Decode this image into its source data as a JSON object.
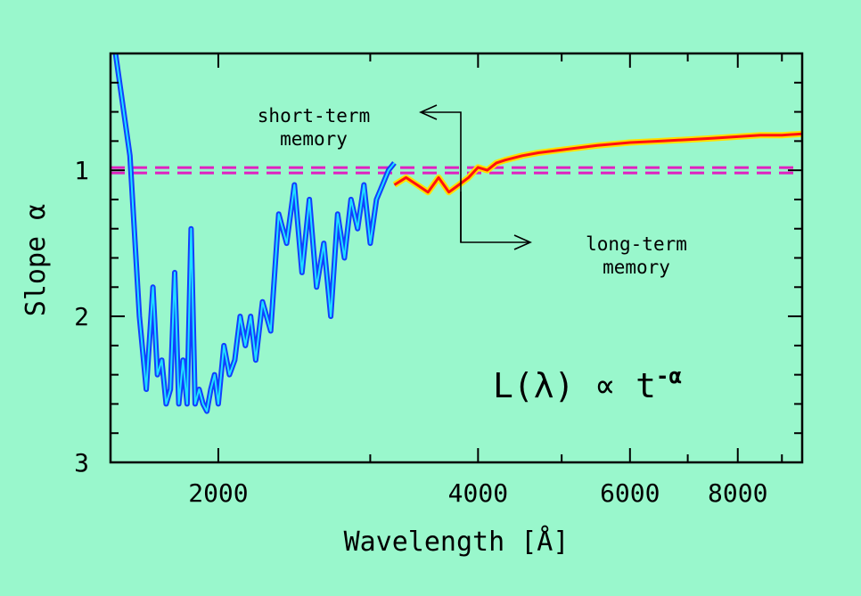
{
  "chart_data": {
    "type": "line",
    "title": "",
    "xlabel": "Wavelength [Å]",
    "ylabel": "Slope α",
    "xscale": "log",
    "xlim": [
      1500,
      9500
    ],
    "ylim": [
      3,
      0.2
    ],
    "y_inverted": true,
    "grid": false,
    "x_ticks": [
      2000,
      4000,
      6000,
      8000
    ],
    "x_tick_labels": [
      "2000",
      "4000",
      "6000",
      "8000"
    ],
    "y_ticks": [
      1,
      2,
      3
    ],
    "y_tick_labels": [
      "1",
      "2",
      "3"
    ],
    "reference_line": {
      "y": 1,
      "style": "dashed",
      "color": "#e020c0"
    },
    "colors": {
      "uv": "#1040ff",
      "uv_inner": "#20e0ff",
      "optical": "#ff1010",
      "optical_glow": "#ffe000",
      "background": "#99f7cc"
    },
    "series": [
      {
        "x": [
          1520,
          1580,
          1620,
          1650,
          1680,
          1700,
          1720,
          1740,
          1760,
          1780,
          1800,
          1820,
          1840,
          1860,
          1880,
          1900,
          1920,
          1940,
          1960,
          1980,
          2000,
          2030,
          2060,
          2090,
          2120,
          2150,
          2180,
          2210,
          2250,
          2300,
          2350,
          2400,
          2450,
          2500,
          2550,
          2600,
          2650,
          2700,
          2750,
          2800,
          2850,
          2900,
          2950,
          3000,
          3050,
          3100,
          3150,
          3200
        ],
        "y": [
          0.2,
          0.9,
          2.0,
          2.5,
          1.8,
          2.4,
          2.3,
          2.6,
          2.5,
          1.7,
          2.6,
          2.3,
          2.6,
          1.4,
          2.6,
          2.5,
          2.6,
          2.65,
          2.5,
          2.4,
          2.6,
          2.2,
          2.4,
          2.3,
          2.0,
          2.2,
          2.0,
          2.3,
          1.9,
          2.1,
          1.3,
          1.5,
          1.1,
          1.7,
          1.2,
          1.8,
          1.5,
          2.0,
          1.3,
          1.6,
          1.2,
          1.4,
          1.1,
          1.5,
          1.2,
          1.1,
          1.0,
          0.95
        ]
      },
      {
        "x": [
          3200,
          3300,
          3400,
          3500,
          3600,
          3700,
          3800,
          3900,
          4000,
          4100,
          4200,
          4300,
          4500,
          4700,
          5000,
          5500,
          6000,
          6500,
          7000,
          7500,
          8000,
          8500,
          9000,
          9500
        ],
        "y": [
          1.1,
          1.05,
          1.1,
          1.15,
          1.05,
          1.15,
          1.1,
          1.05,
          0.98,
          1.0,
          0.95,
          0.93,
          0.9,
          0.88,
          0.86,
          0.83,
          0.81,
          0.8,
          0.79,
          0.78,
          0.77,
          0.76,
          0.76,
          0.75
        ]
      }
    ],
    "annotations": {
      "short_term": "short-term memory",
      "long_term": "long-term memory",
      "formula": "L(λ) ∝ t",
      "formula_exponent": "-α"
    }
  }
}
